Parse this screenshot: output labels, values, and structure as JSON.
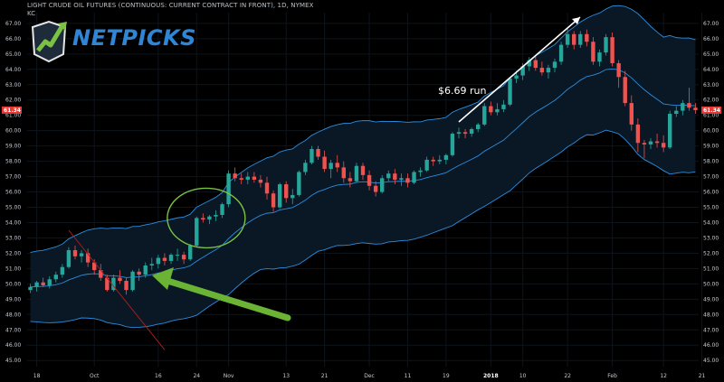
{
  "header": {
    "title": "LIGHT CRUDE OIL FUTURES (CONTINUOUS: CURRENT CONTRACT IN FRONT), 1D, NYMEX",
    "indicator": "KC"
  },
  "logo": {
    "text": "NETPICKS",
    "icon": "chart-arrow-logo-icon"
  },
  "colors": {
    "up": "#26a69a",
    "down": "#ef5350",
    "band": "#2a8ee0",
    "band_fill": "#0b1826",
    "trendline": "#b71c1c",
    "green_arrow": "#6ab335",
    "white_arrow": "#ffffff"
  },
  "chart_data": {
    "type": "candlestick",
    "title": "LIGHT CRUDE OIL FUTURES (CONTINUOUS: CURRENT CONTRACT IN FRONT), 1D, NYMEX",
    "indicator": "KC",
    "ylim": [
      44.6,
      67.7
    ],
    "y_ticks": [
      "45.00",
      "46.00",
      "47.00",
      "48.00",
      "49.00",
      "50.00",
      "51.00",
      "52.00",
      "53.00",
      "54.00",
      "55.00",
      "56.00",
      "57.00",
      "58.00",
      "59.00",
      "60.00",
      "61.00",
      "62.00",
      "63.00",
      "64.00",
      "65.00",
      "66.00",
      "67.00"
    ],
    "x_ticks": [
      {
        "label": "18",
        "index": 1
      },
      {
        "label": "Oct",
        "index": 10
      },
      {
        "label": "16",
        "index": 20
      },
      {
        "label": "24",
        "index": 26
      },
      {
        "label": "Nov",
        "index": 31
      },
      {
        "label": "13",
        "index": 40
      },
      {
        "label": "21",
        "index": 46
      },
      {
        "label": "Dec",
        "index": 53
      },
      {
        "label": "11",
        "index": 59
      },
      {
        "label": "19",
        "index": 65
      },
      {
        "label": "2018",
        "index": 72,
        "bold": true
      },
      {
        "label": "10",
        "index": 77
      },
      {
        "label": "22",
        "index": 84
      },
      {
        "label": "Feb",
        "index": 91
      },
      {
        "label": "12",
        "index": 99
      },
      {
        "label": "21",
        "index": 105
      }
    ],
    "last_price": "61.34",
    "ohlc": [
      [
        49.6,
        50.0,
        49.4,
        49.8
      ],
      [
        49.8,
        50.2,
        49.5,
        50.1
      ],
      [
        50.1,
        50.4,
        49.8,
        49.9
      ],
      [
        49.9,
        50.5,
        49.7,
        50.3
      ],
      [
        50.3,
        50.8,
        50.1,
        50.6
      ],
      [
        50.6,
        51.3,
        50.4,
        51.1
      ],
      [
        51.1,
        52.4,
        51.0,
        52.2
      ],
      [
        52.2,
        52.5,
        51.6,
        51.8
      ],
      [
        51.8,
        52.2,
        51.4,
        52.0
      ],
      [
        52.0,
        52.3,
        51.1,
        51.4
      ],
      [
        51.4,
        51.6,
        50.6,
        50.9
      ],
      [
        50.9,
        51.3,
        50.2,
        50.4
      ],
      [
        50.4,
        50.6,
        49.5,
        49.6
      ],
      [
        49.6,
        50.6,
        49.5,
        50.4
      ],
      [
        50.4,
        50.9,
        50.0,
        50.2
      ],
      [
        50.2,
        50.4,
        49.3,
        49.6
      ],
      [
        49.6,
        50.9,
        49.5,
        50.8
      ],
      [
        50.8,
        51.0,
        50.2,
        50.6
      ],
      [
        50.6,
        51.4,
        50.4,
        51.2
      ],
      [
        51.2,
        51.7,
        50.9,
        51.3
      ],
      [
        51.3,
        51.9,
        51.0,
        51.7
      ],
      [
        51.7,
        52.0,
        51.2,
        51.5
      ],
      [
        51.5,
        52.0,
        51.3,
        51.9
      ],
      [
        51.9,
        52.3,
        51.5,
        51.9
      ],
      [
        51.9,
        52.1,
        51.3,
        51.6
      ],
      [
        51.6,
        52.6,
        51.5,
        52.5
      ],
      [
        52.5,
        54.4,
        52.4,
        54.3
      ],
      [
        54.3,
        54.6,
        54.0,
        54.2
      ],
      [
        54.2,
        54.5,
        53.9,
        54.4
      ],
      [
        54.4,
        54.8,
        54.1,
        54.5
      ],
      [
        54.5,
        55.3,
        54.3,
        55.2
      ],
      [
        55.2,
        57.4,
        55.0,
        57.2
      ],
      [
        57.2,
        57.6,
        56.7,
        56.9
      ],
      [
        56.9,
        57.2,
        56.5,
        56.8
      ],
      [
        56.8,
        57.3,
        56.5,
        57.0
      ],
      [
        57.0,
        57.3,
        56.6,
        56.8
      ],
      [
        56.8,
        57.1,
        56.3,
        56.6
      ],
      [
        56.6,
        57.0,
        55.5,
        55.9
      ],
      [
        55.9,
        56.1,
        54.7,
        55.0
      ],
      [
        55.0,
        56.6,
        54.9,
        56.5
      ],
      [
        56.5,
        56.7,
        55.3,
        55.6
      ],
      [
        55.6,
        56.2,
        55.2,
        55.8
      ],
      [
        55.8,
        57.4,
        55.7,
        57.3
      ],
      [
        57.3,
        58.1,
        57.1,
        57.9
      ],
      [
        57.9,
        59.0,
        57.8,
        58.8
      ],
      [
        58.8,
        59.0,
        58.1,
        58.3
      ],
      [
        58.3,
        58.7,
        57.3,
        57.5
      ],
      [
        57.5,
        58.1,
        56.9,
        57.9
      ],
      [
        57.9,
        58.4,
        57.3,
        57.6
      ],
      [
        57.6,
        58.0,
        56.6,
        56.9
      ],
      [
        56.9,
        57.3,
        56.3,
        56.7
      ],
      [
        56.7,
        57.9,
        56.6,
        57.7
      ],
      [
        57.7,
        57.9,
        56.8,
        57.1
      ],
      [
        57.1,
        57.4,
        56.1,
        56.4
      ],
      [
        56.4,
        56.7,
        55.7,
        56.0
      ],
      [
        56.0,
        57.1,
        55.9,
        56.9
      ],
      [
        56.9,
        57.4,
        56.7,
        57.2
      ],
      [
        57.2,
        57.5,
        56.5,
        56.8
      ],
      [
        56.8,
        57.2,
        56.4,
        56.9
      ],
      [
        56.9,
        57.2,
        56.3,
        56.6
      ],
      [
        56.6,
        57.4,
        56.5,
        57.3
      ],
      [
        57.3,
        57.6,
        57.0,
        57.4
      ],
      [
        57.4,
        58.3,
        57.3,
        58.1
      ],
      [
        58.1,
        58.3,
        57.7,
        58.0
      ],
      [
        58.0,
        58.4,
        57.8,
        58.1
      ],
      [
        58.1,
        58.5,
        57.8,
        58.4
      ],
      [
        58.4,
        59.9,
        58.3,
        59.8
      ],
      [
        59.8,
        60.2,
        59.5,
        59.9
      ],
      [
        59.9,
        60.1,
        59.5,
        59.8
      ],
      [
        59.8,
        60.2,
        59.6,
        60.1
      ],
      [
        60.1,
        60.5,
        59.9,
        60.4
      ],
      [
        60.4,
        61.8,
        60.3,
        61.6
      ],
      [
        61.6,
        61.9,
        61.0,
        61.2
      ],
      [
        61.2,
        61.8,
        61.0,
        61.4
      ],
      [
        61.4,
        62.0,
        61.2,
        61.7
      ],
      [
        61.7,
        63.5,
        61.6,
        63.4
      ],
      [
        63.4,
        63.9,
        63.1,
        63.6
      ],
      [
        63.6,
        64.4,
        63.3,
        64.2
      ],
      [
        64.2,
        64.8,
        63.9,
        64.6
      ],
      [
        64.6,
        64.9,
        63.9,
        64.1
      ],
      [
        64.1,
        64.5,
        63.6,
        63.8
      ],
      [
        63.8,
        64.3,
        63.4,
        64.1
      ],
      [
        64.1,
        64.7,
        63.8,
        64.5
      ],
      [
        64.5,
        65.8,
        64.3,
        65.6
      ],
      [
        65.6,
        66.7,
        65.4,
        66.3
      ],
      [
        66.3,
        66.5,
        65.3,
        65.6
      ],
      [
        65.6,
        66.5,
        65.4,
        66.3
      ],
      [
        66.3,
        66.6,
        65.5,
        65.8
      ],
      [
        65.8,
        66.1,
        64.3,
        64.5
      ],
      [
        64.5,
        65.3,
        64.2,
        65.1
      ],
      [
        65.1,
        66.3,
        64.9,
        66.1
      ],
      [
        66.1,
        66.4,
        64.2,
        64.4
      ],
      [
        64.4,
        64.6,
        62.8,
        63.5
      ],
      [
        63.5,
        63.9,
        61.6,
        61.8
      ],
      [
        61.8,
        62.3,
        60.0,
        60.4
      ],
      [
        60.4,
        60.8,
        58.6,
        59.2
      ],
      [
        59.2,
        59.4,
        58.2,
        59.1
      ],
      [
        59.1,
        59.5,
        58.8,
        59.3
      ],
      [
        59.3,
        59.8,
        58.9,
        59.2
      ],
      [
        59.2,
        59.7,
        58.6,
        58.9
      ],
      [
        58.9,
        61.3,
        58.8,
        61.1
      ],
      [
        61.1,
        61.6,
        60.9,
        61.3
      ],
      [
        61.3,
        62.0,
        61.0,
        61.8
      ],
      [
        61.8,
        62.8,
        61.3,
        61.5
      ],
      [
        61.5,
        61.8,
        61.1,
        61.34
      ]
    ],
    "annotations": [
      {
        "type": "text",
        "text": "$6.69 run"
      }
    ]
  }
}
